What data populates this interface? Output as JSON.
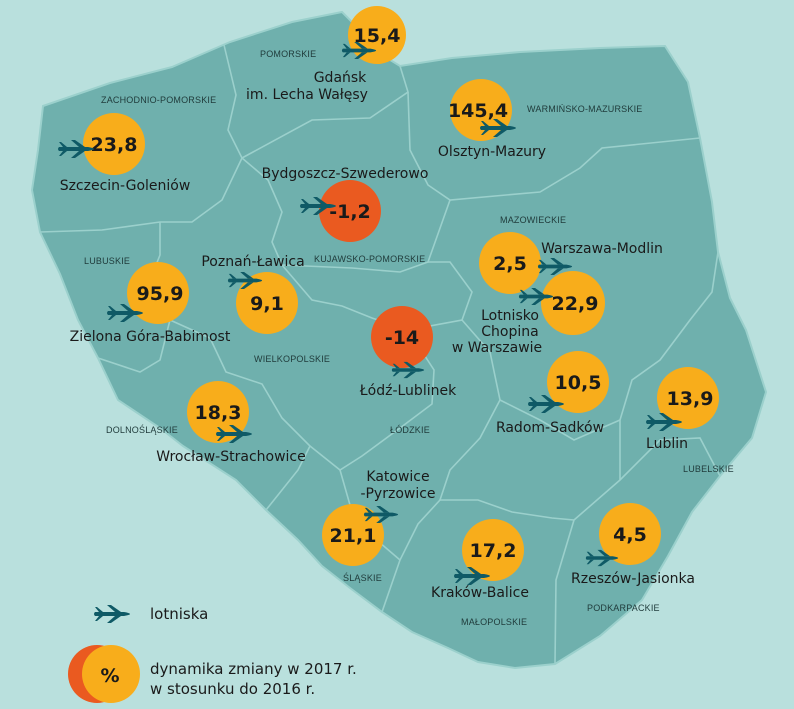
{
  "colors": {
    "sea": "#b9e0dd",
    "land": "#6fb0ad",
    "border": "#9bd0cc",
    "positive": "#f8ad1b",
    "negative": "#ea5a20",
    "plane": "#0f5a66"
  },
  "regions": {
    "pomorskie": "POMORSKIE",
    "zachodniopomorskie": "ZACHODNIO-POMORSKIE",
    "warminsko": "WARMIŃSKO-MAZURSKIE",
    "kujawsko": "KUJAWSKO-POMORSKIE",
    "mazowieckie": "MAZOWIECKIE",
    "lubuskie": "LUBUSKIE",
    "wielkopolskie": "WIELKOPOLSKIE",
    "lodzkie": "ŁÓDZKIE",
    "dolnoslaskie": "DOLNOŚLĄSKIE",
    "lubelskie": "LUBELSKIE",
    "slaskie": "ŚLĄSKIE",
    "malopolskie": "MAŁOPOLSKIE",
    "podkarpackie": "PODKARPACKIE"
  },
  "airports": {
    "gdansk": {
      "label_1": "Gdańsk",
      "label_2": "im. Lecha Wałęsy",
      "value": "15,4",
      "change": 15.4
    },
    "olsztyn": {
      "label": "Olsztyn-Mazury",
      "value": "145,4",
      "change": 145.4
    },
    "szczecin": {
      "label": "Szczecin-Goleniów",
      "value": "23,8",
      "change": 23.8
    },
    "bydgoszcz": {
      "label": "Bydgoszcz-Szwederowo",
      "value": "-1,2",
      "change": -1.2
    },
    "modlin": {
      "label": "Warszawa-Modlin",
      "value": "2,5",
      "change": 2.5
    },
    "chopin": {
      "label_1": "Lotnisko",
      "label_2": "Chopina",
      "label_3": "w Warszawie",
      "value": "22,9",
      "change": 22.9
    },
    "poznan": {
      "label": "Poznań-Ławica",
      "value": "9,1",
      "change": 9.1
    },
    "zielona": {
      "label": "Zielona Góra-Babimost",
      "value": "95,9",
      "change": 95.9
    },
    "lodz": {
      "label": "Łódź-Lublinek",
      "value": "-14",
      "change": -14
    },
    "radom": {
      "label": "Radom-Sadków",
      "value": "10,5",
      "change": 10.5
    },
    "lublin": {
      "label": "Lublin",
      "value": "13,9",
      "change": 13.9
    },
    "wroclaw": {
      "label": "Wrocław-Strachowice",
      "value": "18,3",
      "change": 18.3
    },
    "katowice": {
      "label_1": "Katowice",
      "label_2": "-Pyrzowice",
      "value": "21,1",
      "change": 21.1
    },
    "krakow": {
      "label": "Kraków-Balice",
      "value": "17,2",
      "change": 17.2
    },
    "rzeszow": {
      "label": "Rzeszów-Jasionka",
      "value": "4,5",
      "change": 4.5
    }
  },
  "legend": {
    "airports_label": "lotniska",
    "bubble_symbol": "%",
    "dynamics_line_1": "dynamika zmiany w 2017 r.",
    "dynamics_line_2": "w stosunku do 2016 r."
  }
}
